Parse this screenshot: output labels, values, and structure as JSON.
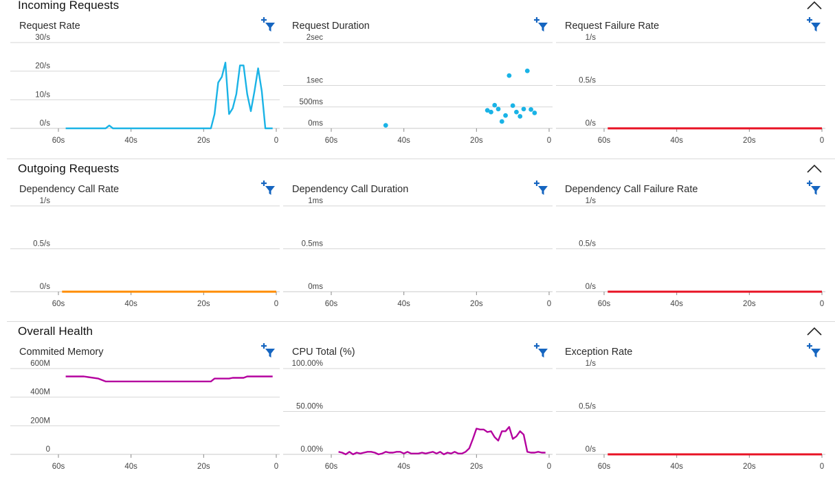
{
  "sections": [
    {
      "title": "Incoming Requests",
      "charts": [
        {
          "title": "Request Rate",
          "type": "line",
          "color": "#1ab3e6",
          "ylim": [
            0,
            30
          ],
          "yticks": [
            {
              "v": 0,
              "label": "0/s"
            },
            {
              "v": 10,
              "label": "10/s"
            },
            {
              "v": 20,
              "label": "20/s"
            },
            {
              "v": 30,
              "label": "30/s"
            }
          ],
          "xticks": [
            "60s",
            "40s",
            "20s",
            "0"
          ],
          "x": [
            58,
            47,
            46,
            45,
            44,
            18,
            17,
            16,
            15,
            14,
            13,
            12,
            11,
            10,
            9,
            8,
            7,
            6,
            5,
            4,
            3,
            2,
            1
          ],
          "y": [
            0,
            0,
            1,
            0,
            0,
            0,
            5,
            16,
            18,
            23,
            5,
            7,
            12,
            22,
            22,
            12,
            6,
            13,
            21,
            13,
            0,
            0,
            0
          ]
        },
        {
          "title": "Request Duration",
          "type": "scatter",
          "color": "#1ab3e6",
          "ylim": [
            0,
            2000
          ],
          "yticks": [
            {
              "v": 0,
              "label": "0ms"
            },
            {
              "v": 500,
              "label": "500ms"
            },
            {
              "v": 1000,
              "label": "1sec"
            },
            {
              "v": 2000,
              "label": "2sec"
            }
          ],
          "xticks": [
            "60s",
            "40s",
            "20s",
            "0"
          ],
          "x": [
            45,
            17,
            16,
            15,
            14,
            13,
            12,
            11,
            10,
            9,
            8,
            7,
            6,
            5,
            4
          ],
          "y": [
            70,
            420,
            380,
            540,
            450,
            160,
            300,
            1230,
            530,
            380,
            280,
            450,
            1340,
            440,
            360
          ]
        },
        {
          "title": "Request Failure Rate",
          "type": "line",
          "color": "#e81123",
          "ylim": [
            0,
            1
          ],
          "yticks": [
            {
              "v": 0,
              "label": "0/s"
            },
            {
              "v": 0.5,
              "label": "0.5/s"
            },
            {
              "v": 1,
              "label": "1/s"
            }
          ],
          "xticks": [
            "60s",
            "40s",
            "20s",
            "0"
          ],
          "x": [
            59,
            0
          ],
          "y": [
            0,
            0
          ]
        }
      ]
    },
    {
      "title": "Outgoing Requests",
      "charts": [
        {
          "title": "Dependency Call Rate",
          "type": "line",
          "color": "#ff8c00",
          "ylim": [
            0,
            1
          ],
          "yticks": [
            {
              "v": 0,
              "label": "0/s"
            },
            {
              "v": 0.5,
              "label": "0.5/s"
            },
            {
              "v": 1,
              "label": "1/s"
            }
          ],
          "xticks": [
            "60s",
            "40s",
            "20s",
            "0"
          ],
          "x": [
            59,
            0
          ],
          "y": [
            0,
            0
          ]
        },
        {
          "title": "Dependency Call Duration",
          "type": "line",
          "color": "#1ab3e6",
          "ylim": [
            0,
            1
          ],
          "yticks": [
            {
              "v": 0,
              "label": "0ms"
            },
            {
              "v": 0.5,
              "label": "0.5ms"
            },
            {
              "v": 1,
              "label": "1ms"
            }
          ],
          "xticks": [
            "60s",
            "40s",
            "20s",
            "0"
          ],
          "x": [],
          "y": []
        },
        {
          "title": "Dependency Call Failure Rate",
          "type": "line",
          "color": "#e81123",
          "ylim": [
            0,
            1
          ],
          "yticks": [
            {
              "v": 0,
              "label": "0/s"
            },
            {
              "v": 0.5,
              "label": "0.5/s"
            },
            {
              "v": 1,
              "label": "1/s"
            }
          ],
          "xticks": [
            "60s",
            "40s",
            "20s",
            "0"
          ],
          "x": [
            59,
            0
          ],
          "y": [
            0,
            0
          ]
        }
      ]
    },
    {
      "title": "Overall Health",
      "charts": [
        {
          "title": "Commited Memory",
          "type": "line",
          "color": "#b4009e",
          "ylim": [
            0,
            600
          ],
          "yticks": [
            {
              "v": 0,
              "label": "0"
            },
            {
              "v": 200,
              "label": "200M"
            },
            {
              "v": 400,
              "label": "400M"
            },
            {
              "v": 600,
              "label": "600M"
            }
          ],
          "xticks": [
            "60s",
            "40s",
            "20s",
            "0"
          ],
          "x": [
            58,
            53,
            49,
            47,
            18,
            17,
            13,
            12,
            9,
            8,
            1
          ],
          "y": [
            545,
            545,
            530,
            510,
            510,
            530,
            530,
            535,
            535,
            545,
            545
          ]
        },
        {
          "title": "CPU Total (%)",
          "type": "line",
          "color": "#b4009e",
          "ylim": [
            0,
            100
          ],
          "yticks": [
            {
              "v": 0,
              "label": "0.00%"
            },
            {
              "v": 50,
              "label": "50.00%"
            },
            {
              "v": 100,
              "label": "100.00%"
            }
          ],
          "xticks": [
            "60s",
            "40s",
            "20s",
            "0"
          ],
          "x": [
            58,
            57,
            56,
            55,
            54,
            53,
            52,
            51,
            50,
            49,
            48,
            47,
            46,
            45,
            44,
            43,
            42,
            41,
            40,
            39,
            38,
            37,
            36,
            35,
            34,
            33,
            32,
            31,
            30,
            29,
            28,
            27,
            26,
            25,
            24,
            23,
            22,
            21,
            20,
            19,
            18,
            17,
            16,
            15,
            14,
            13,
            12,
            11,
            10,
            9,
            8,
            7,
            6,
            5,
            4,
            3,
            2,
            1
          ],
          "y": [
            3,
            2,
            0,
            3,
            0,
            2,
            1,
            2,
            3,
            3,
            2,
            0,
            1,
            3,
            2,
            2,
            3,
            3,
            1,
            3,
            1,
            1,
            1,
            2,
            1,
            2,
            3,
            1,
            3,
            0,
            2,
            1,
            3,
            1,
            1,
            3,
            7,
            18,
            30,
            29,
            29,
            26,
            27,
            20,
            16,
            27,
            27,
            32,
            18,
            21,
            27,
            23,
            3,
            2,
            2,
            3,
            2,
            2
          ]
        },
        {
          "title": "Exception Rate",
          "type": "line",
          "color": "#e81123",
          "ylim": [
            0,
            1
          ],
          "yticks": [
            {
              "v": 0,
              "label": "0/s"
            },
            {
              "v": 0.5,
              "label": "0.5/s"
            },
            {
              "v": 1,
              "label": "1/s"
            }
          ],
          "xticks": [
            "60s",
            "40s",
            "20s",
            "0"
          ],
          "x": [
            59,
            0
          ],
          "y": [
            0,
            0
          ]
        }
      ]
    }
  ]
}
